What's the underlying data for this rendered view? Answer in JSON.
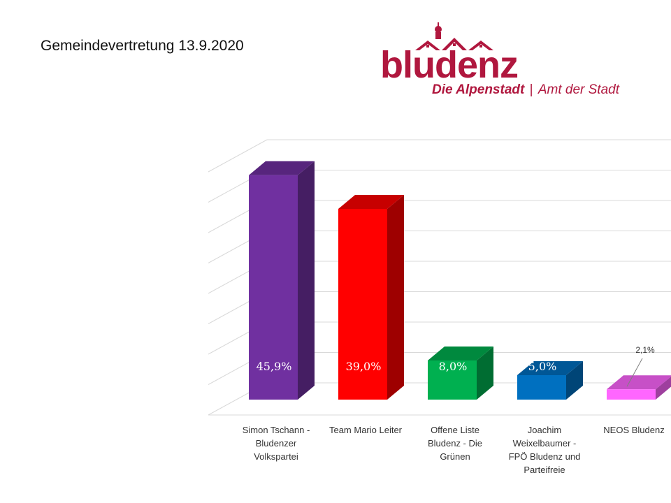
{
  "page": {
    "title": "Gemeindevertretung 13.9.2020"
  },
  "logo": {
    "word": "bludenz",
    "tagline": "Die Alpenstadt",
    "separator": "|",
    "office": "Amt der Stadt",
    "color": "#b0173e"
  },
  "chart_data": {
    "type": "bar",
    "style": "3d-column",
    "categories": [
      "Simon Tschann - Bludenzer Volkspartei",
      "Team Mario Leiter",
      "Offene Liste Bludenz - Die Grünen",
      "Joachim Weixelbaumer - FPÖ Bludenz und Parteifreie",
      "NEOS Bludenz"
    ],
    "values": [
      45.9,
      39.0,
      8.0,
      5.0,
      2.1
    ],
    "data_labels": [
      "45,9%",
      "39,0%",
      "8,0%",
      "5,0%",
      "2,1%"
    ],
    "colors": [
      "#7030a0",
      "#ff0000",
      "#00b050",
      "#0070c0",
      "#ff66ff"
    ],
    "ylim": [
      0,
      50
    ],
    "grid": true,
    "legend": "none"
  }
}
